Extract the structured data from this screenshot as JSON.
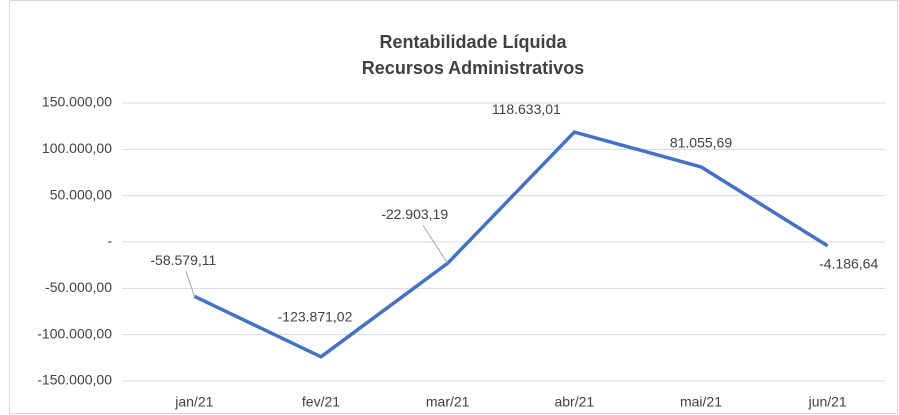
{
  "chart_data": {
    "type": "line",
    "title": "Rentabilidade Líquida",
    "subtitle": "Recursos Administrativos",
    "categories": [
      "jan/21",
      "fev/21",
      "mar/21",
      "abr/21",
      "mai/21",
      "jun/21"
    ],
    "series": [
      {
        "name": "Rentabilidade Líquida",
        "color": "#4472c4",
        "values": [
          -58579.11,
          -123871.02,
          -22903.19,
          118633.01,
          81055.69,
          -4186.64
        ],
        "value_labels": [
          "-58.579,11",
          "-123.871,02",
          "-22.903,19",
          "118.633,01",
          "81.055,69",
          "-4.186,64"
        ]
      }
    ],
    "ylim": [
      -150000,
      150000
    ],
    "yticks": [
      {
        "value": -150000,
        "label": "-150.000,00"
      },
      {
        "value": -100000,
        "label": "-100.000,00"
      },
      {
        "value": -50000,
        "label": "-50.000,00"
      },
      {
        "value": 0,
        "label": "-"
      },
      {
        "value": 50000,
        "label": "50.000,00"
      },
      {
        "value": 100000,
        "label": "100.000,00"
      },
      {
        "value": 150000,
        "label": "150.000,00"
      }
    ],
    "grid": true
  }
}
